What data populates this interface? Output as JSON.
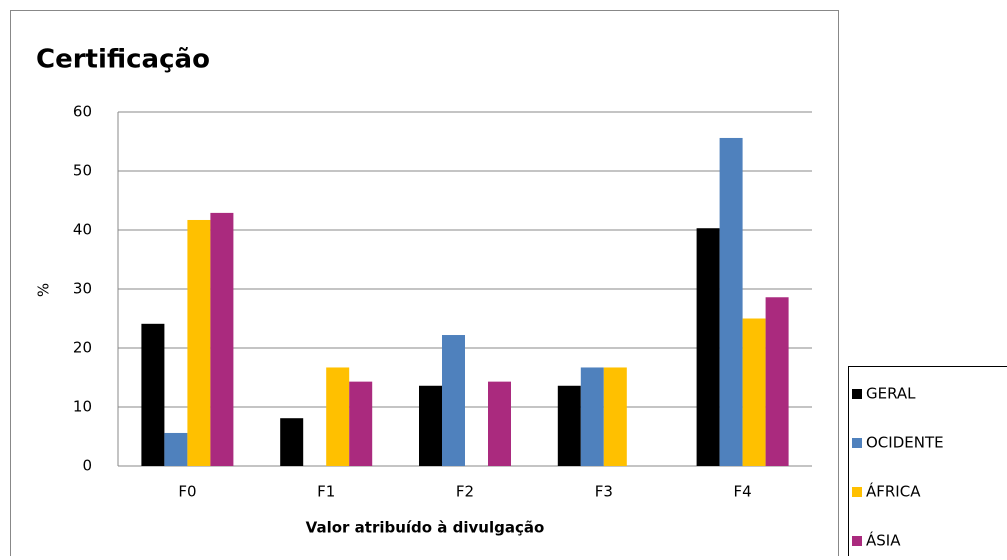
{
  "chart_data": {
    "type": "bar",
    "title": "Certificação",
    "x_label": "Valor atribuído à divulgação",
    "y_label": "%",
    "categories": [
      "F0",
      "F1",
      "F2",
      "F3",
      "F4"
    ],
    "series": [
      {
        "name": "GERAL",
        "color": "#000000",
        "values": [
          24.1,
          8.1,
          13.6,
          13.6,
          40.3
        ]
      },
      {
        "name": "OCIDENTE",
        "color": "#4f81bd",
        "values": [
          5.6,
          0,
          22.2,
          16.7,
          55.6
        ]
      },
      {
        "name": "ÁFRICA",
        "color": "#ffc000",
        "values": [
          41.7,
          16.7,
          0,
          16.7,
          25
        ]
      },
      {
        "name": "ÁSIA",
        "color": "#aa2a7e",
        "values": [
          42.9,
          14.3,
          14.3,
          0,
          28.6
        ]
      }
    ],
    "ylim": [
      0,
      60
    ],
    "yticks": [
      0,
      10,
      20,
      30,
      40,
      50,
      60
    ],
    "grid": true,
    "legend": "bottom-right"
  }
}
